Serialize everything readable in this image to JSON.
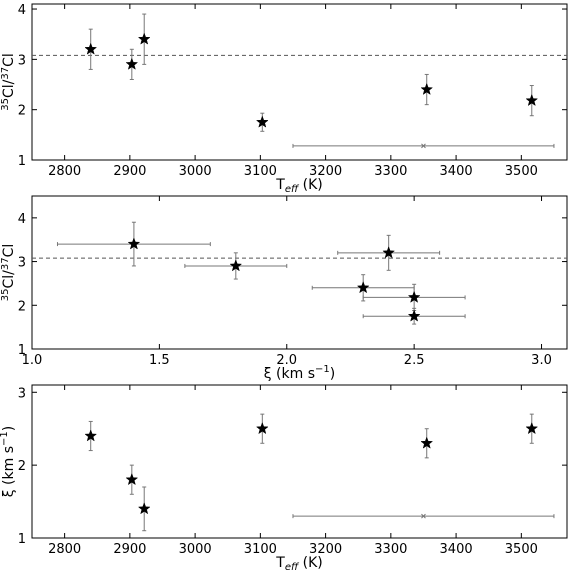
{
  "chart_data": [
    {
      "type": "scatter",
      "xlabel": "T",
      "xlabel_sub": "eff",
      "xlabel_unit": " (K)",
      "ylabel_parts": [
        "35",
        "Cl/",
        "37",
        "Cl"
      ],
      "xlim": [
        2750,
        3570
      ],
      "ylim": [
        1,
        4.1
      ],
      "xticks": [
        2800,
        2900,
        3000,
        3100,
        3200,
        3300,
        3400,
        3500
      ],
      "yticks": [
        1,
        2,
        3,
        4
      ],
      "reference_line": 3.08,
      "points": [
        {
          "x": 2840,
          "y": 3.2,
          "yerr": 0.4
        },
        {
          "x": 2903,
          "y": 2.9,
          "yerr": 0.3
        },
        {
          "x": 2922,
          "y": 3.4,
          "yerr": 0.5
        },
        {
          "x": 3103,
          "y": 1.75,
          "yerr": 0.18
        },
        {
          "x": 3355,
          "y": 2.4,
          "yerr": 0.3
        },
        {
          "x": 3516,
          "y": 2.18,
          "yerr": 0.3
        }
      ],
      "typical_error": {
        "x": 3350,
        "y": 1.28,
        "xerr": 200
      }
    },
    {
      "type": "scatter",
      "xlabel": "ξ (km s",
      "xlabel_sup": "−1",
      "xlabel_end": ")",
      "ylabel_parts": [
        "35",
        "Cl/",
        "37",
        "Cl"
      ],
      "xlim": [
        1.0,
        3.1
      ],
      "ylim": [
        1,
        4.5
      ],
      "xticks": [
        1.0,
        1.5,
        2.0,
        2.5,
        3.0
      ],
      "xtick_labels": [
        "1.0",
        "1.5",
        "2.0",
        "2.5",
        "3.0"
      ],
      "yticks": [
        1,
        2,
        3,
        4
      ],
      "reference_line": 3.08,
      "points": [
        {
          "x": 1.4,
          "y": 3.4,
          "yerr": 0.5,
          "xerr": 0.3
        },
        {
          "x": 1.8,
          "y": 2.9,
          "yerr": 0.3,
          "xerr": 0.2
        },
        {
          "x": 2.3,
          "y": 2.4,
          "yerr": 0.3,
          "xerr": 0.2
        },
        {
          "x": 2.4,
          "y": 3.2,
          "yerr": 0.4,
          "xerr": 0.2
        },
        {
          "x": 2.5,
          "y": 2.18,
          "yerr": 0.3,
          "xerr": 0.2
        },
        {
          "x": 2.5,
          "y": 1.75,
          "yerr": 0.18,
          "xerr": 0.2
        }
      ]
    },
    {
      "type": "scatter",
      "xlabel": "T",
      "xlabel_sub": "eff",
      "xlabel_unit": " (K)",
      "ylabel": "ξ (km s",
      "ylabel_sup": "−1",
      "ylabel_end": ")",
      "xlim": [
        2750,
        3570
      ],
      "ylim": [
        1,
        3.1
      ],
      "xticks": [
        2800,
        2900,
        3000,
        3100,
        3200,
        3300,
        3400,
        3500
      ],
      "yticks": [
        1,
        2,
        3
      ],
      "points": [
        {
          "x": 2840,
          "y": 2.4,
          "yerr": 0.2
        },
        {
          "x": 2903,
          "y": 1.8,
          "yerr": 0.2
        },
        {
          "x": 2922,
          "y": 1.4,
          "yerr": 0.3
        },
        {
          "x": 3103,
          "y": 2.5,
          "yerr": 0.2
        },
        {
          "x": 3355,
          "y": 2.3,
          "yerr": 0.2
        },
        {
          "x": 3516,
          "y": 2.5,
          "yerr": 0.2
        }
      ],
      "typical_error": {
        "x": 3350,
        "y": 1.3,
        "xerr": 200
      }
    }
  ]
}
